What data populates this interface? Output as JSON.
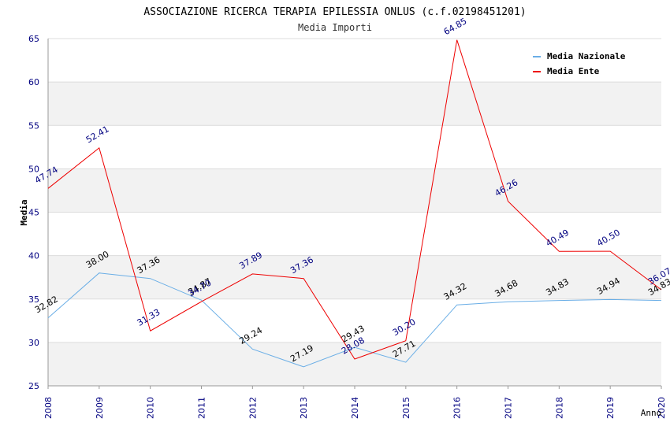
{
  "chart_data": {
    "type": "line",
    "title": "ASSOCIAZIONE RICERCA TERAPIA EPILESSIA ONLUS (c.f.02198451201)",
    "subtitle": "Media Importi",
    "xlabel": "Anno",
    "ylabel": "Media",
    "x": [
      "2008",
      "2009",
      "2010",
      "2011",
      "2012",
      "2013",
      "2014",
      "2015",
      "2016",
      "2017",
      "2018",
      "2019",
      "2020"
    ],
    "ylim": [
      25,
      65
    ],
    "yticks": [
      "25",
      "30",
      "35",
      "40",
      "45",
      "50",
      "55",
      "60",
      "65"
    ],
    "grid": true,
    "legend_position": "top-right",
    "series": [
      {
        "name": "Media Nazionale",
        "color": "#6aaee6",
        "label_color": "#000000",
        "values": [
          32.82,
          38.0,
          37.36,
          34.87,
          29.24,
          27.19,
          29.43,
          27.71,
          34.32,
          34.68,
          34.83,
          34.94,
          34.83
        ],
        "labels": [
          "32.82",
          "38.00",
          "37.36",
          "34.87",
          "29.24",
          "27.19",
          "29.43",
          "27.71",
          "34.32",
          "34.68",
          "34.83",
          "34.94",
          "34.83"
        ]
      },
      {
        "name": "Media Ente",
        "color": "#ee0000",
        "label_color": "#000080",
        "values": [
          47.74,
          52.41,
          31.33,
          34.7,
          37.89,
          37.36,
          28.08,
          30.2,
          64.85,
          46.26,
          40.49,
          40.5,
          36.07
        ],
        "labels": [
          "47.74",
          "52.41",
          "31.33",
          "34.70",
          "37.89",
          "37.36",
          "28.08",
          "30.20",
          "64.85",
          "46.26",
          "40.49",
          "40.50",
          "36.07"
        ]
      }
    ]
  }
}
